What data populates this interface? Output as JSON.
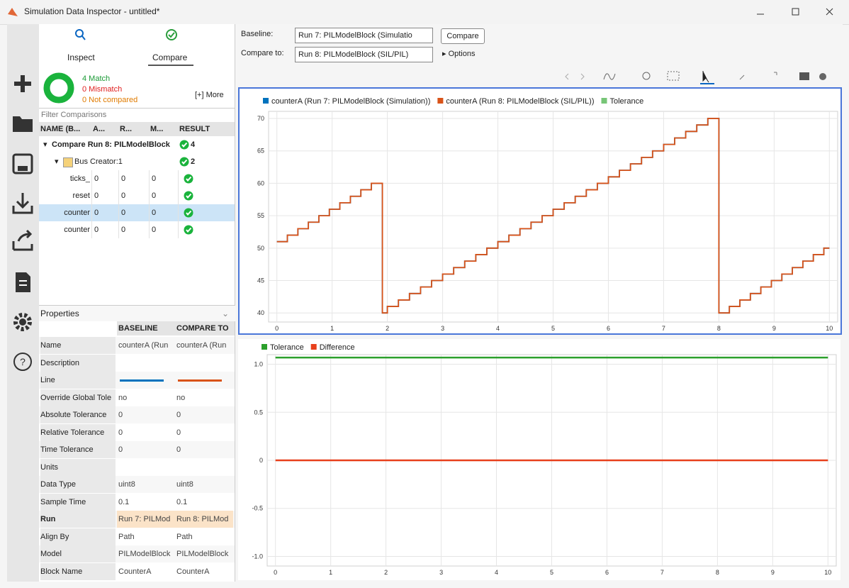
{
  "window": {
    "title": "Simulation Data Inspector - untitled*"
  },
  "tabs": [
    "Inspect",
    "Compare"
  ],
  "summary": {
    "match": "4 Match",
    "mismatch": "0 Mismatch",
    "not_compared": "0 Not compared",
    "more": "[+] More"
  },
  "filter_placeholder": "Filter Comparisons",
  "tree": {
    "headers": [
      "NAME (B...",
      "A...",
      "R...",
      "M...",
      "RESULT"
    ],
    "rows": [
      {
        "name": "Compare Run 8: PILModelBlock",
        "result": 4
      },
      {
        "name": "Bus Creator:1",
        "result": 2
      },
      {
        "name": "ticks_",
        "values": [
          0,
          0,
          0
        ]
      },
      {
        "name": "reset",
        "values": [
          0,
          0,
          0
        ]
      },
      {
        "name": "counter",
        "values": [
          0,
          0,
          0
        ],
        "selected": true
      },
      {
        "name": "counter",
        "values": [
          0,
          0,
          0
        ]
      }
    ]
  },
  "properties": {
    "title": "Properties",
    "headers": [
      "BASELINE",
      "COMPARE TO"
    ],
    "rows": [
      {
        "label": "Name",
        "baseline": "counterA (Run",
        "compare": "counterA (Run"
      },
      {
        "label": "Description"
      },
      {
        "label": "Line"
      },
      {
        "label": "Override Global Tole",
        "baseline": "no",
        "compare": "no"
      },
      {
        "label": "Absolute Tolerance",
        "baseline": 0,
        "compare": 0
      },
      {
        "label": "Relative Tolerance",
        "baseline": 0,
        "compare": 0
      },
      {
        "label": "Time Tolerance",
        "baseline": 0,
        "compare": 0
      },
      {
        "label": "Units"
      },
      {
        "label": "Data Type",
        "baseline": "uint8",
        "compare": "uint8"
      },
      {
        "label": "Sample Time",
        "baseline": 0.1,
        "compare": 0.1
      },
      {
        "label": "Run",
        "baseline": "Run 7: PILMod",
        "compare": "Run 8: PILMod",
        "highlight": true
      },
      {
        "label": "Align By",
        "baseline": "Path",
        "compare": "Path"
      },
      {
        "label": "Model",
        "baseline": "PILModelBlock",
        "compare": "PILModelBlock"
      },
      {
        "label": "Block Name",
        "baseline": "CounterA",
        "compare": "CounterA"
      }
    ]
  },
  "toolbar": {
    "baseline_label": "Baseline:",
    "baseline_value": "Run 7: PILModelBlock (Simulatio",
    "compare_button": "Compare",
    "compare_to_label": "Compare to:",
    "compare_to_value": "Run 8: PILModelBlock (SIL/PIL)",
    "options": "Options"
  },
  "chart_data": [
    {
      "type": "line",
      "drawstyle": "steps-post",
      "x": [
        0,
        0.19,
        0.38,
        0.57,
        0.76,
        0.95,
        1.14,
        1.33,
        1.52,
        1.71,
        1.91,
        2.0,
        2.2,
        2.4,
        2.6,
        2.8,
        3.0,
        3.2,
        3.4,
        3.6,
        3.8,
        4.0,
        4.2,
        4.4,
        4.6,
        4.8,
        5.0,
        5.2,
        5.4,
        5.6,
        5.8,
        6.0,
        6.2,
        6.4,
        6.6,
        6.8,
        7.0,
        7.2,
        7.4,
        7.6,
        7.8,
        8.0,
        8.19,
        8.38,
        8.57,
        8.76,
        8.95,
        9.14,
        9.33,
        9.52,
        9.71,
        9.9,
        10
      ],
      "series": [
        {
          "name": "counterA (Run 7: PILModelBlock (Simulation))",
          "color": "#0072bd",
          "values": [
            51,
            52,
            53,
            54,
            55,
            56,
            57,
            58,
            59,
            60,
            40,
            41,
            42,
            43,
            44,
            45,
            46,
            47,
            48,
            49,
            50,
            51,
            52,
            53,
            54,
            55,
            56,
            57,
            58,
            59,
            60,
            61,
            62,
            63,
            64,
            65,
            66,
            67,
            68,
            69,
            70,
            40,
            41,
            42,
            43,
            44,
            45,
            46,
            47,
            48,
            49,
            50,
            50
          ]
        },
        {
          "name": "counterA (Run 8: PILModelBlock (SIL/PIL))",
          "color": "#d95319",
          "values": [
            51,
            52,
            53,
            54,
            55,
            56,
            57,
            58,
            59,
            60,
            40,
            41,
            42,
            43,
            44,
            45,
            46,
            47,
            48,
            49,
            50,
            51,
            52,
            53,
            54,
            55,
            56,
            57,
            58,
            59,
            60,
            61,
            62,
            63,
            64,
            65,
            66,
            67,
            68,
            69,
            70,
            40,
            41,
            42,
            43,
            44,
            45,
            46,
            47,
            48,
            49,
            50,
            50
          ]
        },
        {
          "name": "Tolerance",
          "color": "#77c577"
        }
      ],
      "xlim": [
        -0.15,
        10.15
      ],
      "ylim": [
        38.6,
        71.1
      ],
      "xticks": [
        0,
        1,
        2,
        3,
        4,
        5,
        6,
        7,
        8,
        9,
        10
      ],
      "yticks": [
        40,
        45,
        50,
        55,
        60,
        65,
        70
      ],
      "grid": true
    },
    {
      "type": "line",
      "x": [
        0,
        10
      ],
      "series": [
        {
          "name": "Tolerance",
          "color": "#2ca02c",
          "values": [
            1.07,
            1.07
          ]
        },
        {
          "name": "Difference",
          "color": "#e8401c",
          "values": [
            0,
            0
          ]
        }
      ],
      "xlim": [
        -0.15,
        10.15
      ],
      "ylim": [
        -1.1,
        1.1
      ],
      "xticks": [
        0,
        1,
        2,
        3,
        4,
        5,
        6,
        7,
        8,
        9,
        10
      ],
      "yticks": [
        {
          "value": 1,
          "label": "1.0"
        },
        0.5,
        0,
        -0.5,
        {
          "value": -1,
          "label": "-1.0"
        }
      ],
      "grid": true
    }
  ]
}
